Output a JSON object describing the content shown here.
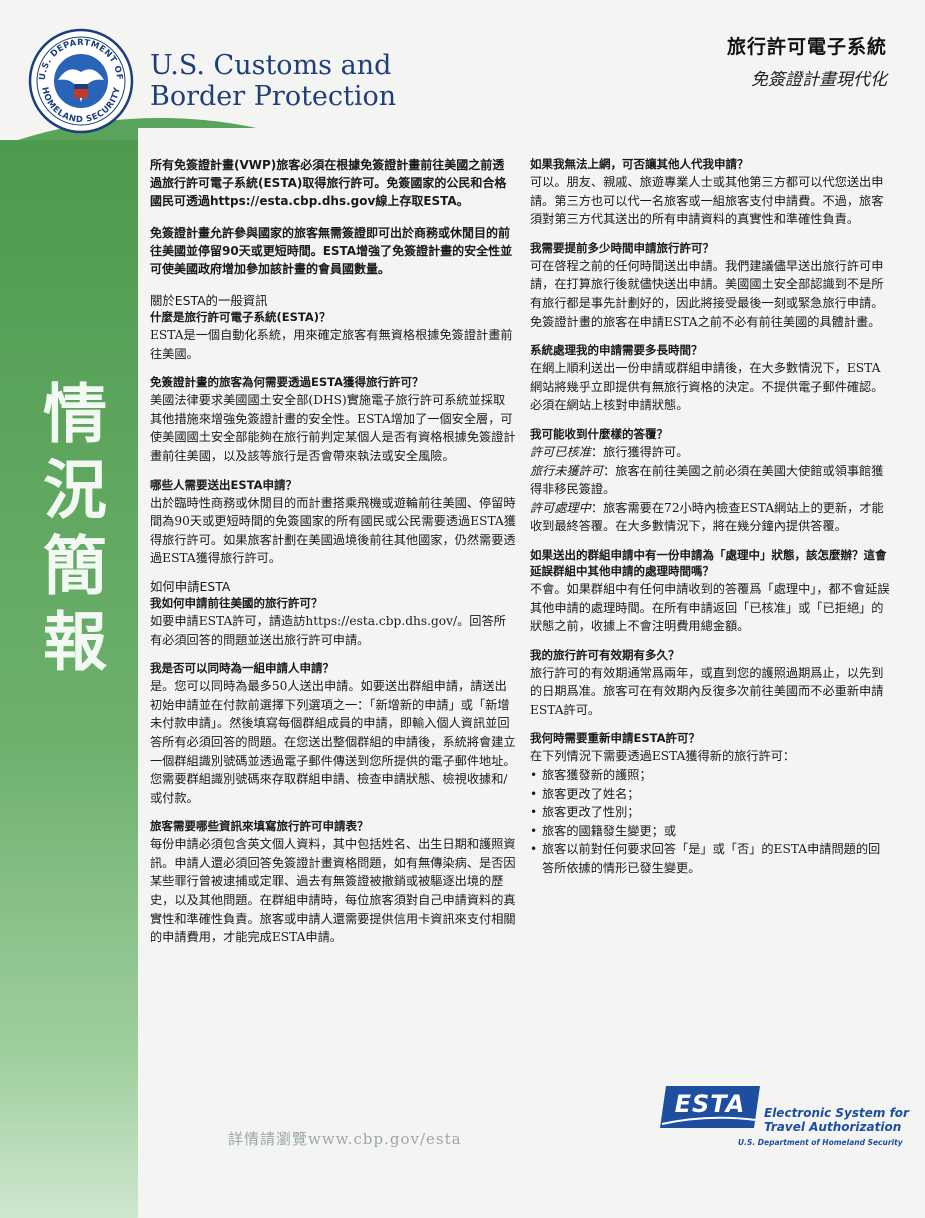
{
  "header": {
    "agency_line1": "U.S. Customs and",
    "agency_line2": "Border Protection",
    "system_title": "旅行許可電子系統",
    "subtitle": "免簽證計畫現代化"
  },
  "sidebar_title": "情況簡報",
  "left_column": {
    "intro1": "所有免簽證計畫(VWP)旅客必須在根據免簽證計畫前往美國之前透過旅行許可電子系統(ESTA)取得旅行許可。免簽國家的公民和合格國民可透過https://esta.cbp.dhs.gov線上存取ESTA。",
    "intro2": "免簽證計畫允許參與國家的旅客無需簽證即可出於商務或休閒目的前往美國並停留90天或更短時間。ESTA增強了免簽證計畫的安全性並可使美國政府增加參加該計畫的會員國數量。",
    "section": "關於ESTA的一般資訊",
    "q1": "什麼是旅行許可電子系統(ESTA)？",
    "a1": "ESTA是一個自動化系統，用來確定旅客有無資格根據免簽證計畫前往美國。",
    "q2": "免簽證計畫的旅客為何需要透過ESTA獲得旅行許可？",
    "a2": "美國法律要求美國國土安全部(DHS)實施電子旅行許可系統並採取其他措施來增強免簽證計畫的安全性。ESTA增加了一個安全層，可使美國國土安全部能夠在旅行前判定某個人是否有資格根據免簽證計畫前往美國，以及該等旅行是否會帶來執法或安全風險。",
    "q3": "哪些人需要送出ESTA申請？",
    "a3": "出於臨時性商務或休閒目的而計畫搭乘飛機或遊輪前往美國、停留時間為90天或更短時間的免簽國家的所有國民或公民需要透過ESTA獲得旅行許可。如果旅客計劃在美國過境後前往其他國家，仍然需要透過ESTA獲得旅行許可。",
    "section2": "如何申請ESTA",
    "q4": "我如何申請前往美國的旅行許可？",
    "a4": "如要申請ESTA許可，請造訪https://esta.cbp.dhs.gov/。回答所有必須回答的問題並送出旅行許可申請。",
    "q5": "我是否可以同時為一組申請人申請？",
    "a5": "是。您可以同時為最多50人送出申請。如要送出群組申請，請送出初始申請並在付款前選擇下列選項之一：「新增新的申請」或「新增未付款申請」。然後填寫每個群組成員的申請，即輸入個人資訊並回答所有必須回答的問題。在您送出整個群組的申請後，系統將會建立一個群組識別號碼並透過電子郵件傳送到您所提供的電子郵件地址。您需要群組識別號碼來存取群組申請、檢查申請狀態、檢視收據和/或付款。",
    "q6": "旅客需要哪些資訊來填寫旅行許可申請表？",
    "a6": "每份申請必須包含英文個人資料，其中包括姓名、出生日期和護照資訊。申請人還必須回答免簽證計畫資格問題，如有無傳染病、是否因某些罪行曾被逮捕或定罪、過去有無簽證被撤銷或被驅逐出境的歷史，以及其他問題。在群組申請時，每位旅客須對自己申請資料的真實性和準確性負責。旅客或申請人還需要提供信用卡資訊來支付相關的申請費用，才能完成ESTA申請。"
  },
  "right_column": {
    "q1": "如果我無法上網，可否讓其他人代我申請？",
    "a1": "可以。朋友、親戚、旅遊專業人士或其他第三方都可以代您送出申請。第三方也可以代一名旅客或一組旅客支付申請費。不過，旅客須對第三方代其送出的所有申請資料的真實性和準確性負責。",
    "q2": "我需要提前多少時間申請旅行許可？",
    "a2": "可在啓程之前的任何時間送出申請。我們建議儘早送出旅行許可申請，在打算旅行後就儘快送出申請。美國國土安全部認識到不是所有旅行都是事先計劃好的，因此將接受最後一刻或緊急旅行申請。免簽證計畫的旅客在申請ESTA之前不必有前往美國的具體計畫。",
    "q3": "系統處理我的申請需要多長時間？",
    "a3": "在網上順利送出一份申請或群組申請後，在大多數情況下，ESTA網站將幾乎立即提供有無旅行資格的決定。不提供電子郵件確認。必須在網站上核對申請狀態。",
    "q4": "我可能收到什麼樣的答覆？",
    "r1_label": "許可已核准",
    "r1_text": "：旅行獲得許可。",
    "r2_label": "旅行未獲許可",
    "r2_text": "：旅客在前往美國之前必須在美國大使館或領事館獲得非移民簽證。",
    "r3_label": "許可處理中",
    "r3_text": "：旅客需要在72小時內檢查ESTA網站上的更新，才能收到最終答覆。在大多數情況下，將在幾分鐘內提供答覆。",
    "q5": "如果送出的群組申請中有一份申請為「處理中」狀態，該怎麼辦？這會延誤群組中其他申請的處理時間嗎？",
    "a5": "不會。如果群組中有任何申請收到的答覆爲「處理中」，都不會延誤其他申請的處理時間。在所有申請返回「已核准」或「已拒絕」的狀態之前，收據上不會注明費用總金額。",
    "q6": "我的旅行許可有效期有多久？",
    "a6": "旅行許可的有效期通常爲兩年，或直到您的護照過期爲止，以先到的日期爲准。旅客可在有效期內反復多次前往美國而不必重新申請ESTA許可。",
    "q7": "我何時需要重新申請ESTA許可？",
    "a7": "在下列情況下需要透過ESTA獲得新的旅行許可：",
    "bullets": [
      "旅客獲發新的護照；",
      "旅客更改了姓名；",
      "旅客更改了性別；",
      "旅客的國籍發生變更；或",
      "旅客以前對任何要求回答「是」或「否」的ESTA申請問題的回答所依據的情形已發生變更。"
    ]
  },
  "footer": {
    "more_info": "詳情請瀏覽www.cbp.gov/esta",
    "esta_logo_text": "ESTA",
    "esta_name_line1": "Electronic System for",
    "esta_name_line2": "Travel Authorization",
    "esta_dhs": "U.S. Department of Homeland Security",
    "seal_text_top": "U.S. DEPARTMENT OF",
    "seal_text_bottom": "HOMELAND SECURITY"
  },
  "colors": {
    "green": "#5aa35a",
    "navy": "#1e3f7a",
    "esta_blue": "#1d4ea0"
  }
}
